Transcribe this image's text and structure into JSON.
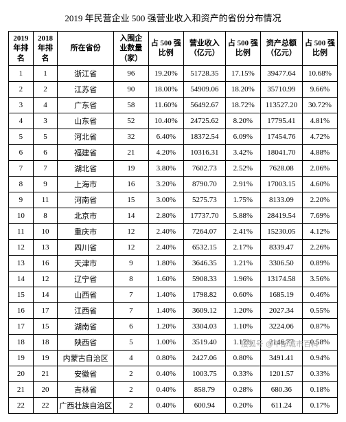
{
  "title": "2019 年民营企业 500 强营业收入和资产的省份分布情况",
  "columns": [
    "2019\n年排\n名",
    "2018\n年排\n名",
    "所在省份",
    "入围企\n业数量\n（家）",
    "占 500 强\n比例",
    "营业收入\n（亿元）",
    "占 500 强\n比例",
    "资产总额\n（亿元）",
    "占 500 强\n比例"
  ],
  "rows": [
    [
      "1",
      "1",
      "浙江省",
      "96",
      "19.20%",
      "51728.35",
      "17.15%",
      "39477.64",
      "10.68%"
    ],
    [
      "2",
      "2",
      "江苏省",
      "90",
      "18.00%",
      "54909.06",
      "18.20%",
      "35710.99",
      "9.66%"
    ],
    [
      "3",
      "4",
      "广东省",
      "58",
      "11.60%",
      "56492.67",
      "18.72%",
      "113527.20",
      "30.72%"
    ],
    [
      "4",
      "3",
      "山东省",
      "52",
      "10.40%",
      "24725.62",
      "8.20%",
      "17795.41",
      "4.81%"
    ],
    [
      "5",
      "5",
      "河北省",
      "32",
      "6.40%",
      "18372.54",
      "6.09%",
      "17454.76",
      "4.72%"
    ],
    [
      "6",
      "6",
      "福建省",
      "21",
      "4.20%",
      "10316.31",
      "3.42%",
      "18041.70",
      "4.88%"
    ],
    [
      "7",
      "7",
      "湖北省",
      "19",
      "3.80%",
      "7602.73",
      "2.52%",
      "7628.08",
      "2.06%"
    ],
    [
      "8",
      "9",
      "上海市",
      "16",
      "3.20%",
      "8790.70",
      "2.91%",
      "17003.15",
      "4.60%"
    ],
    [
      "9",
      "11",
      "河南省",
      "15",
      "3.00%",
      "5275.73",
      "1.75%",
      "8133.09",
      "2.20%"
    ],
    [
      "10",
      "8",
      "北京市",
      "14",
      "2.80%",
      "17737.70",
      "5.88%",
      "28419.54",
      "7.69%"
    ],
    [
      "11",
      "10",
      "重庆市",
      "12",
      "2.40%",
      "7264.07",
      "2.41%",
      "15230.05",
      "4.12%"
    ],
    [
      "12",
      "13",
      "四川省",
      "12",
      "2.40%",
      "6532.15",
      "2.17%",
      "8339.47",
      "2.26%"
    ],
    [
      "13",
      "16",
      "天津市",
      "9",
      "1.80%",
      "3646.35",
      "1.21%",
      "3306.50",
      "0.89%"
    ],
    [
      "14",
      "12",
      "辽宁省",
      "8",
      "1.60%",
      "5908.33",
      "1.96%",
      "13174.58",
      "3.56%"
    ],
    [
      "15",
      "14",
      "山西省",
      "7",
      "1.40%",
      "1798.82",
      "0.60%",
      "1685.19",
      "0.46%"
    ],
    [
      "16",
      "17",
      "江西省",
      "7",
      "1.40%",
      "3609.12",
      "1.20%",
      "2027.34",
      "0.55%"
    ],
    [
      "17",
      "15",
      "湖南省",
      "6",
      "1.20%",
      "3304.03",
      "1.10%",
      "3224.06",
      "0.87%"
    ],
    [
      "18",
      "18",
      "陕西省",
      "5",
      "1.00%",
      "3519.40",
      "1.17%",
      "2146.77",
      "0.58%"
    ],
    [
      "19",
      "19",
      "内蒙古自治区",
      "4",
      "0.80%",
      "2427.06",
      "0.80%",
      "3491.41",
      "0.94%"
    ],
    [
      "20",
      "21",
      "安徽省",
      "2",
      "0.40%",
      "1003.75",
      "0.33%",
      "1201.57",
      "0.33%"
    ],
    [
      "21",
      "20",
      "吉林省",
      "2",
      "0.40%",
      "858.79",
      "0.28%",
      "680.36",
      "0.18%"
    ],
    [
      "22",
      "22",
      "广西壮族自治区",
      "2",
      "0.40%",
      "600.94",
      "0.20%",
      "611.24",
      "0.17%"
    ]
  ],
  "watermark": "搜狐号 @中部城市百科",
  "style": {
    "font_family": "SimSun",
    "title_fontsize": 13,
    "body_fontsize": 11,
    "border_color": "#000000",
    "background": "#ffffff",
    "text_color": "#000000",
    "watermark_color": "#aaaaaa"
  }
}
